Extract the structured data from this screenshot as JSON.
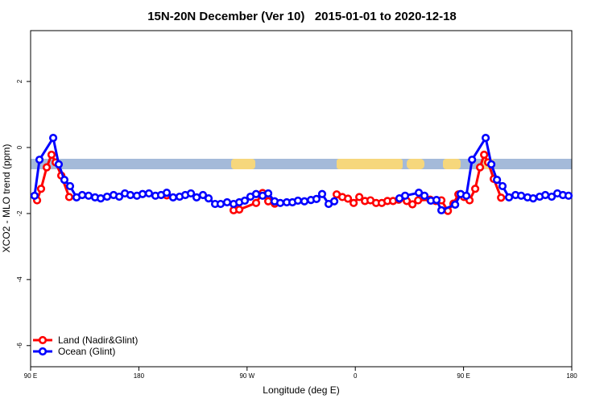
{
  "chart_data": {
    "type": "line",
    "title": "15N-20N December (Ver 10)   2015-01-01 to 2020-12-18",
    "x_label": "Longitude (deg E)",
    "y_label": "XCO2 - MLO trend (ppm)",
    "xlim": [
      90,
      540
    ],
    "xticks": [
      {
        "value": 90,
        "label": "90 E"
      },
      180,
      {
        "value": 270,
        "label": "90 W"
      },
      {
        "value": 360,
        "label": "0"
      },
      {
        "value": 450,
        "label": "90 E"
      },
      {
        "value": 540,
        "label": "180"
      }
    ],
    "ylim": [
      -6.64,
      3.54
    ],
    "yticks": [
      -6,
      -4,
      -2,
      0,
      2
    ],
    "legend": "bottom-left",
    "series": [
      {
        "name": "Land (Nadir&Glint)",
        "color": "#ff0000",
        "x": [
          95.4,
          98.7,
          103.4,
          107.4,
          110.8,
          115.5,
          122.1,
          null,
          203.2,
          null,
          258.8,
          263.5,
          277.5,
          282.9,
          287.6,
          293,
          null,
          344.5,
          349.2,
          353.9,
          358.6,
          363.3,
          368,
          372.6,
          377.3,
          382,
          386.7,
          391.4,
          396.1,
          402.8,
          407.5,
          412.2,
          422.2,
          426.9,
          431.6,
          437,
          441.6,
          445.7,
          450.4,
          455,
          459.7,
          463.7,
          467.1,
          470.4,
          475.1,
          481.2
        ],
        "values": [
          -1.6,
          -1.25,
          -0.6,
          -0.22,
          -0.45,
          -0.85,
          -1.5,
          null,
          -1.45,
          null,
          -1.9,
          -1.88,
          -1.68,
          -1.38,
          -1.63,
          -1.7,
          null,
          -1.42,
          -1.5,
          -1.55,
          -1.68,
          -1.5,
          -1.62,
          -1.6,
          -1.68,
          -1.68,
          -1.62,
          -1.62,
          -1.58,
          -1.62,
          -1.72,
          -1.6,
          -1.58,
          -1.62,
          -1.6,
          -1.92,
          -1.7,
          -1.42,
          -1.5,
          -1.6,
          -1.25,
          -0.6,
          -0.22,
          -0.45,
          -0.95,
          -1.52
        ]
      },
      {
        "name": "Ocean (Glint)",
        "color": "#0000ff",
        "x": [
          93.3,
          97.4,
          108.8,
          113.4,
          118.1,
          122.8,
          128.2,
          132.9,
          138.2,
          143.6,
          148.3,
          153.6,
          159,
          163.7,
          168.4,
          173,
          178.4,
          183.1,
          188.4,
          193.8,
          198.5,
          203.2,
          208.5,
          213.9,
          218.6,
          223.3,
          228,
          233.3,
          238,
          243.4,
          248,
          253.4,
          258.8,
          263.5,
          268.1,
          272.8,
          277.5,
          282.9,
          287.6,
          292.9,
          297.6,
          303,
          307.7,
          312.3,
          317.7,
          323.1,
          327.7,
          332.4,
          337.8,
          342.5,
          null,
          396.7,
          401.4,
          412.8,
          417.5,
          422.8,
          427.5,
          431.6,
          443,
          447.6,
          452.3,
          457.1,
          468.4,
          473.1,
          477.8,
          482.4,
          487.8,
          493.2,
          497.9,
          503.2,
          507.9,
          513.3,
          518,
          523.3,
          528,
          532.6,
          537.3
        ],
        "values": [
          -1.46,
          -0.37,
          0.29,
          -0.51,
          -0.98,
          -1.17,
          -1.51,
          -1.44,
          -1.46,
          -1.51,
          -1.54,
          -1.49,
          -1.44,
          -1.49,
          -1.39,
          -1.44,
          -1.46,
          -1.41,
          -1.39,
          -1.46,
          -1.44,
          -1.37,
          -1.51,
          -1.49,
          -1.44,
          -1.39,
          -1.51,
          -1.44,
          -1.54,
          -1.71,
          -1.71,
          -1.66,
          -1.71,
          -1.66,
          -1.61,
          -1.49,
          -1.41,
          -1.46,
          -1.39,
          -1.63,
          -1.68,
          -1.66,
          -1.66,
          -1.61,
          -1.63,
          -1.59,
          -1.56,
          -1.41,
          -1.71,
          -1.63,
          null,
          -1.54,
          -1.46,
          -1.37,
          -1.46,
          -1.61,
          -1.59,
          -1.9,
          -1.73,
          -1.41,
          -1.46,
          -0.37,
          0.29,
          -0.51,
          -0.98,
          -1.17,
          -1.51,
          -1.44,
          -1.46,
          -1.51,
          -1.54,
          -1.49,
          -1.44,
          -1.49,
          -1.39,
          -1.44,
          -1.46
        ]
      }
    ]
  }
}
